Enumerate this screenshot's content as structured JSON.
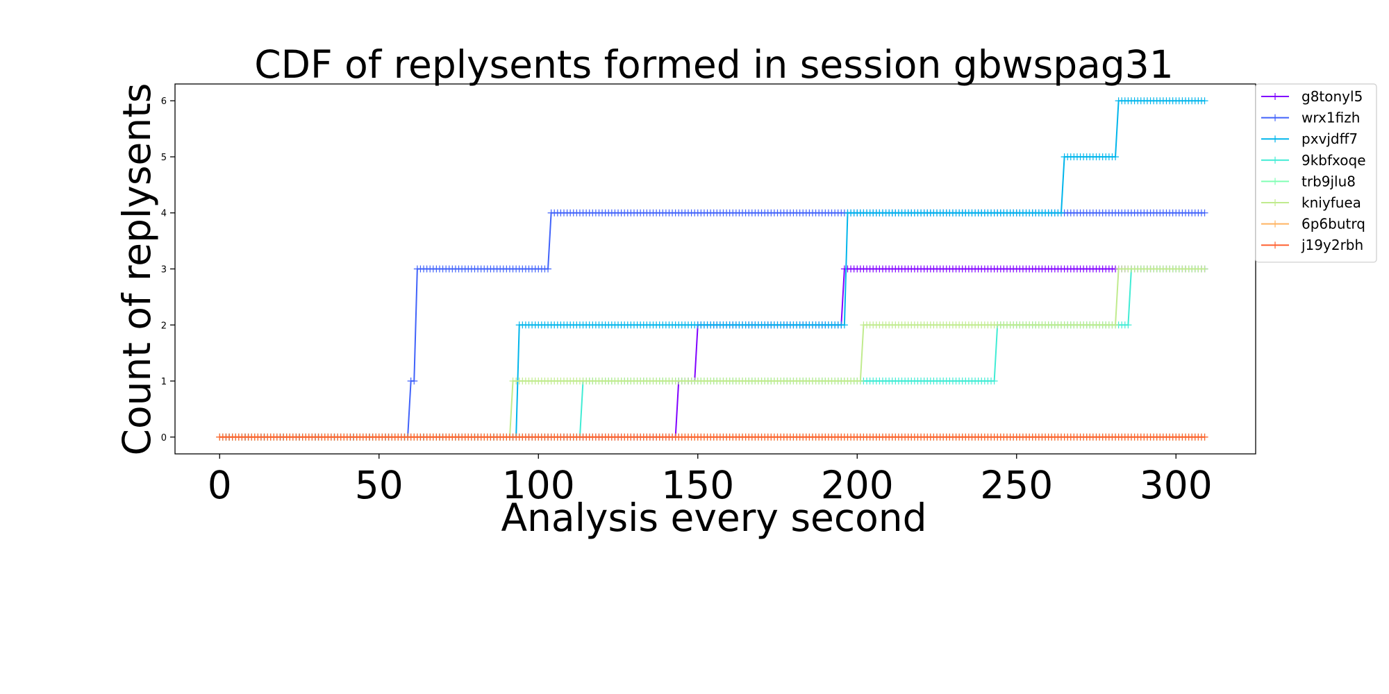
{
  "chart_data": {
    "type": "line",
    "title": "CDF of replysents formed in session gbwspag31",
    "xlabel": "Analysis every second",
    "ylabel": "Count of replysents",
    "xlim": [
      -14,
      325
    ],
    "ylim": [
      -0.3,
      6.3
    ],
    "xticks": [
      "0",
      "50",
      "100",
      "150",
      "200",
      "250",
      "300"
    ],
    "xtick_values": [
      0,
      50,
      100,
      150,
      200,
      250,
      300
    ],
    "yticks": [
      "0",
      "1",
      "2",
      "3",
      "4",
      "5",
      "6"
    ],
    "ytick_values": [
      0,
      1,
      2,
      3,
      4,
      5,
      6
    ],
    "x_range": [
      0,
      309
    ],
    "legend_position": "outside-top-right",
    "marker": "+",
    "series": [
      {
        "name": "g8tonyl5",
        "color": "#8000ff",
        "steps": [
          [
            0,
            0
          ],
          [
            144,
            1
          ],
          [
            150,
            2
          ],
          [
            196,
            3
          ]
        ]
      },
      {
        "name": "wrx1fizh",
        "color": "#4062fa",
        "steps": [
          [
            0,
            0
          ],
          [
            60,
            1
          ],
          [
            62,
            3
          ],
          [
            104,
            4
          ]
        ]
      },
      {
        "name": "pxvjdff7",
        "color": "#00b5eb",
        "steps": [
          [
            0,
            0
          ],
          [
            94,
            2
          ],
          [
            197,
            4
          ],
          [
            265,
            5
          ],
          [
            282,
            6
          ]
        ]
      },
      {
        "name": "9kbfxoqe",
        "color": "#40ecd4",
        "steps": [
          [
            0,
            0
          ],
          [
            114,
            1
          ],
          [
            244,
            2
          ],
          [
            286,
            3
          ]
        ]
      },
      {
        "name": "trb9jlu8",
        "color": "#80ffb4",
        "steps": [
          [
            0,
            0
          ]
        ]
      },
      {
        "name": "kniyfuea",
        "color": "#c0eb8d",
        "steps": [
          [
            0,
            0
          ],
          [
            92,
            1
          ],
          [
            202,
            2
          ],
          [
            282,
            3
          ]
        ]
      },
      {
        "name": "6p6butrq",
        "color": "#ffb360",
        "steps": [
          [
            0,
            0
          ]
        ]
      },
      {
        "name": "j19y2rbh",
        "color": "#ff6030",
        "steps": [
          [
            0,
            0
          ]
        ]
      }
    ]
  }
}
